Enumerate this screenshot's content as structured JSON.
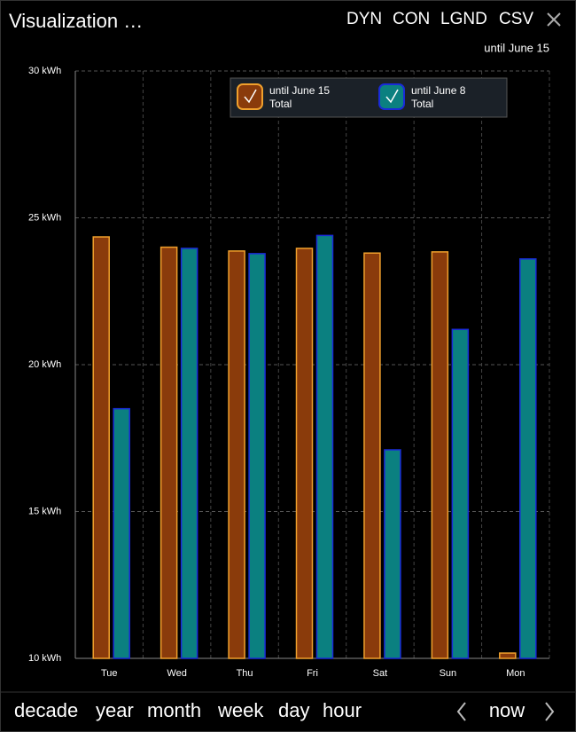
{
  "header": {
    "title": "Visualization …",
    "buttons": [
      {
        "label": "DYN",
        "enabled": true
      },
      {
        "label": "CON",
        "enabled": true
      },
      {
        "label": "LGND",
        "enabled": true
      },
      {
        "label": "CSV",
        "enabled": false
      }
    ],
    "subtitle": "until June 15"
  },
  "chart_data": {
    "type": "bar",
    "categories": [
      "Tue",
      "Wed",
      "Thu",
      "Fri",
      "Sat",
      "Sun",
      "Mon"
    ],
    "series": [
      {
        "name": "until June 15",
        "legend_sub": "Total",
        "color": "#8a3b0b",
        "stroke": "#f0a02c",
        "values": [
          24.35,
          24.0,
          23.87,
          23.96,
          23.8,
          23.84,
          10.18
        ]
      },
      {
        "name": "until June 8",
        "legend_sub": "Total",
        "color": "#0b8080",
        "stroke": "#1a2bd8",
        "values": [
          18.5,
          23.96,
          23.78,
          24.4,
          17.1,
          21.2,
          23.6
        ]
      }
    ],
    "ylim": [
      10,
      30
    ],
    "yticks": [
      {
        "value": 10,
        "label": "10 kWh"
      },
      {
        "value": 15,
        "label": "15 kWh"
      },
      {
        "value": 20,
        "label": "20 kWh"
      },
      {
        "value": 25,
        "label": "25 kWh"
      },
      {
        "value": 30,
        "label": "30 kWh"
      }
    ],
    "grid": true
  },
  "nav": {
    "periods": [
      "decade",
      "year",
      "month",
      "week",
      "day",
      "hour"
    ],
    "active": 3,
    "now": "now"
  }
}
